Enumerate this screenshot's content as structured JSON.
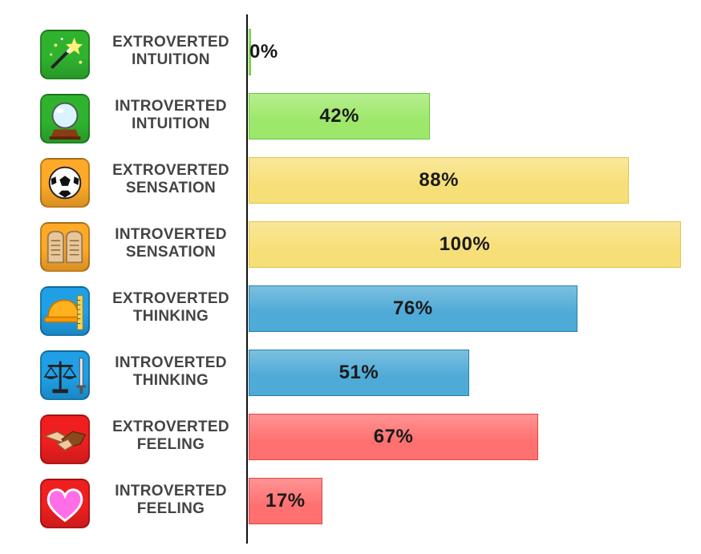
{
  "chart_data": {
    "type": "bar",
    "orientation": "horizontal",
    "title": "",
    "xlabel": "",
    "ylabel": "",
    "xlim": [
      0,
      100
    ],
    "grid": false,
    "legend": "none",
    "categories": [
      [
        "EXTROVERTED",
        "INTUITION"
      ],
      [
        "INTROVERTED",
        "INTUITION"
      ],
      [
        "EXTROVERTED",
        "SENSATION"
      ],
      [
        "INTROVERTED",
        "SENSATION"
      ],
      [
        "EXTROVERTED",
        "THINKING"
      ],
      [
        "INTROVERTED",
        "THINKING"
      ],
      [
        "EXTROVERTED",
        "FEELING"
      ],
      [
        "INTROVERTED",
        "FEELING"
      ]
    ],
    "values": [
      0,
      42,
      88,
      100,
      76,
      51,
      67,
      17
    ],
    "value_labels": [
      "0%",
      "42%",
      "88%",
      "100%",
      "76%",
      "51%",
      "67%",
      "17%"
    ],
    "icons": [
      "magic-wand-icon",
      "crystal-ball-icon",
      "soccer-ball-icon",
      "stone-tablets-icon",
      "hard-hat-ruler-icon",
      "scales-sword-icon",
      "handshake-icon",
      "heart-icon"
    ],
    "bar_colors": [
      "#9de86a",
      "#9de86a",
      "#f7df78",
      "#f7df78",
      "#4eaad6",
      "#4eaad6",
      "#ff7070",
      "#ff7070"
    ],
    "bar_borders": [
      "#6bc43e",
      "#6bc43e",
      "#e3c24c",
      "#e3c24c",
      "#2b7fae",
      "#2b7fae",
      "#e04646",
      "#e04646"
    ],
    "icon_colors": [
      "#2fb32f",
      "#2fb32f",
      "#ffa928",
      "#ffa928",
      "#1f9fe6",
      "#1f9fe6",
      "#f01f1f",
      "#f01f1f"
    ]
  }
}
